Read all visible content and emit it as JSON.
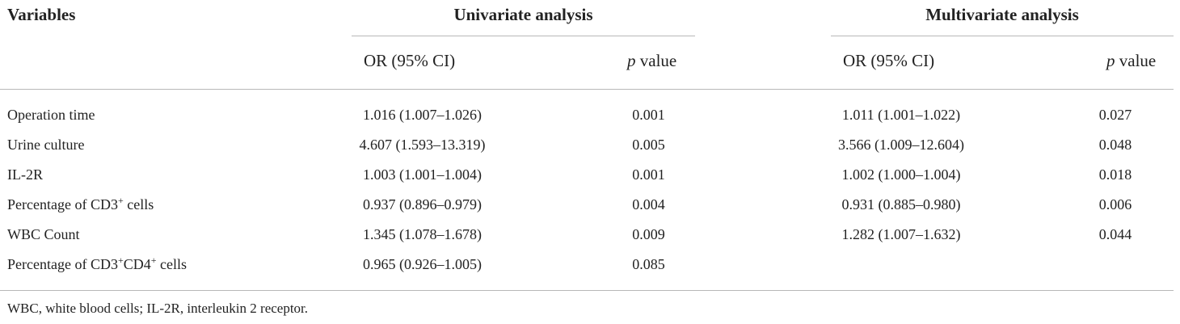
{
  "table": {
    "headers": {
      "variables": "Variables",
      "univariate": "Univariate analysis",
      "multivariate": "Multivariate analysis",
      "or_ci": "OR (95% CI)",
      "p_letter": "p",
      "p_word": "value"
    },
    "rows": [
      {
        "variable": "Operation time",
        "uni_or": "1.016 (1.007–1.026)",
        "uni_p": "0.001",
        "multi_or": "1.011 (1.001–1.022)",
        "multi_p": "0.027"
      },
      {
        "variable": "Urine culture",
        "uni_or": "4.607 (1.593–13.319)",
        "uni_p": "0.005",
        "multi_or": "3.566 (1.009–12.604)",
        "multi_p": "0.048"
      },
      {
        "variable": "IL-2R",
        "uni_or": "1.003 (1.001–1.004)",
        "uni_p": "0.001",
        "multi_or": "1.002 (1.000–1.004)",
        "multi_p": "0.018"
      },
      {
        "variable_prefix": "Percentage of CD3",
        "variable_sup": "+",
        "variable_suffix": " cells",
        "uni_or": "0.937 (0.896–0.979)",
        "uni_p": "0.004",
        "multi_or": "0.931 (0.885–0.980)",
        "multi_p": "0.006"
      },
      {
        "variable": "WBC Count",
        "uni_or": "1.345 (1.078–1.678)",
        "uni_p": "0.009",
        "multi_or": "1.282 (1.007–1.632)",
        "multi_p": "0.044"
      },
      {
        "variable_prefix": "Percentage of CD3",
        "variable_sup": "+",
        "variable_mid": "CD4",
        "variable_sup2": "+",
        "variable_suffix": " cells",
        "uni_or": "0.965 (0.926–1.005)",
        "uni_p": "0.085",
        "multi_or": "",
        "multi_p": ""
      }
    ],
    "footnote": "WBC, white blood cells; IL-2R, interleukin 2 receptor."
  }
}
